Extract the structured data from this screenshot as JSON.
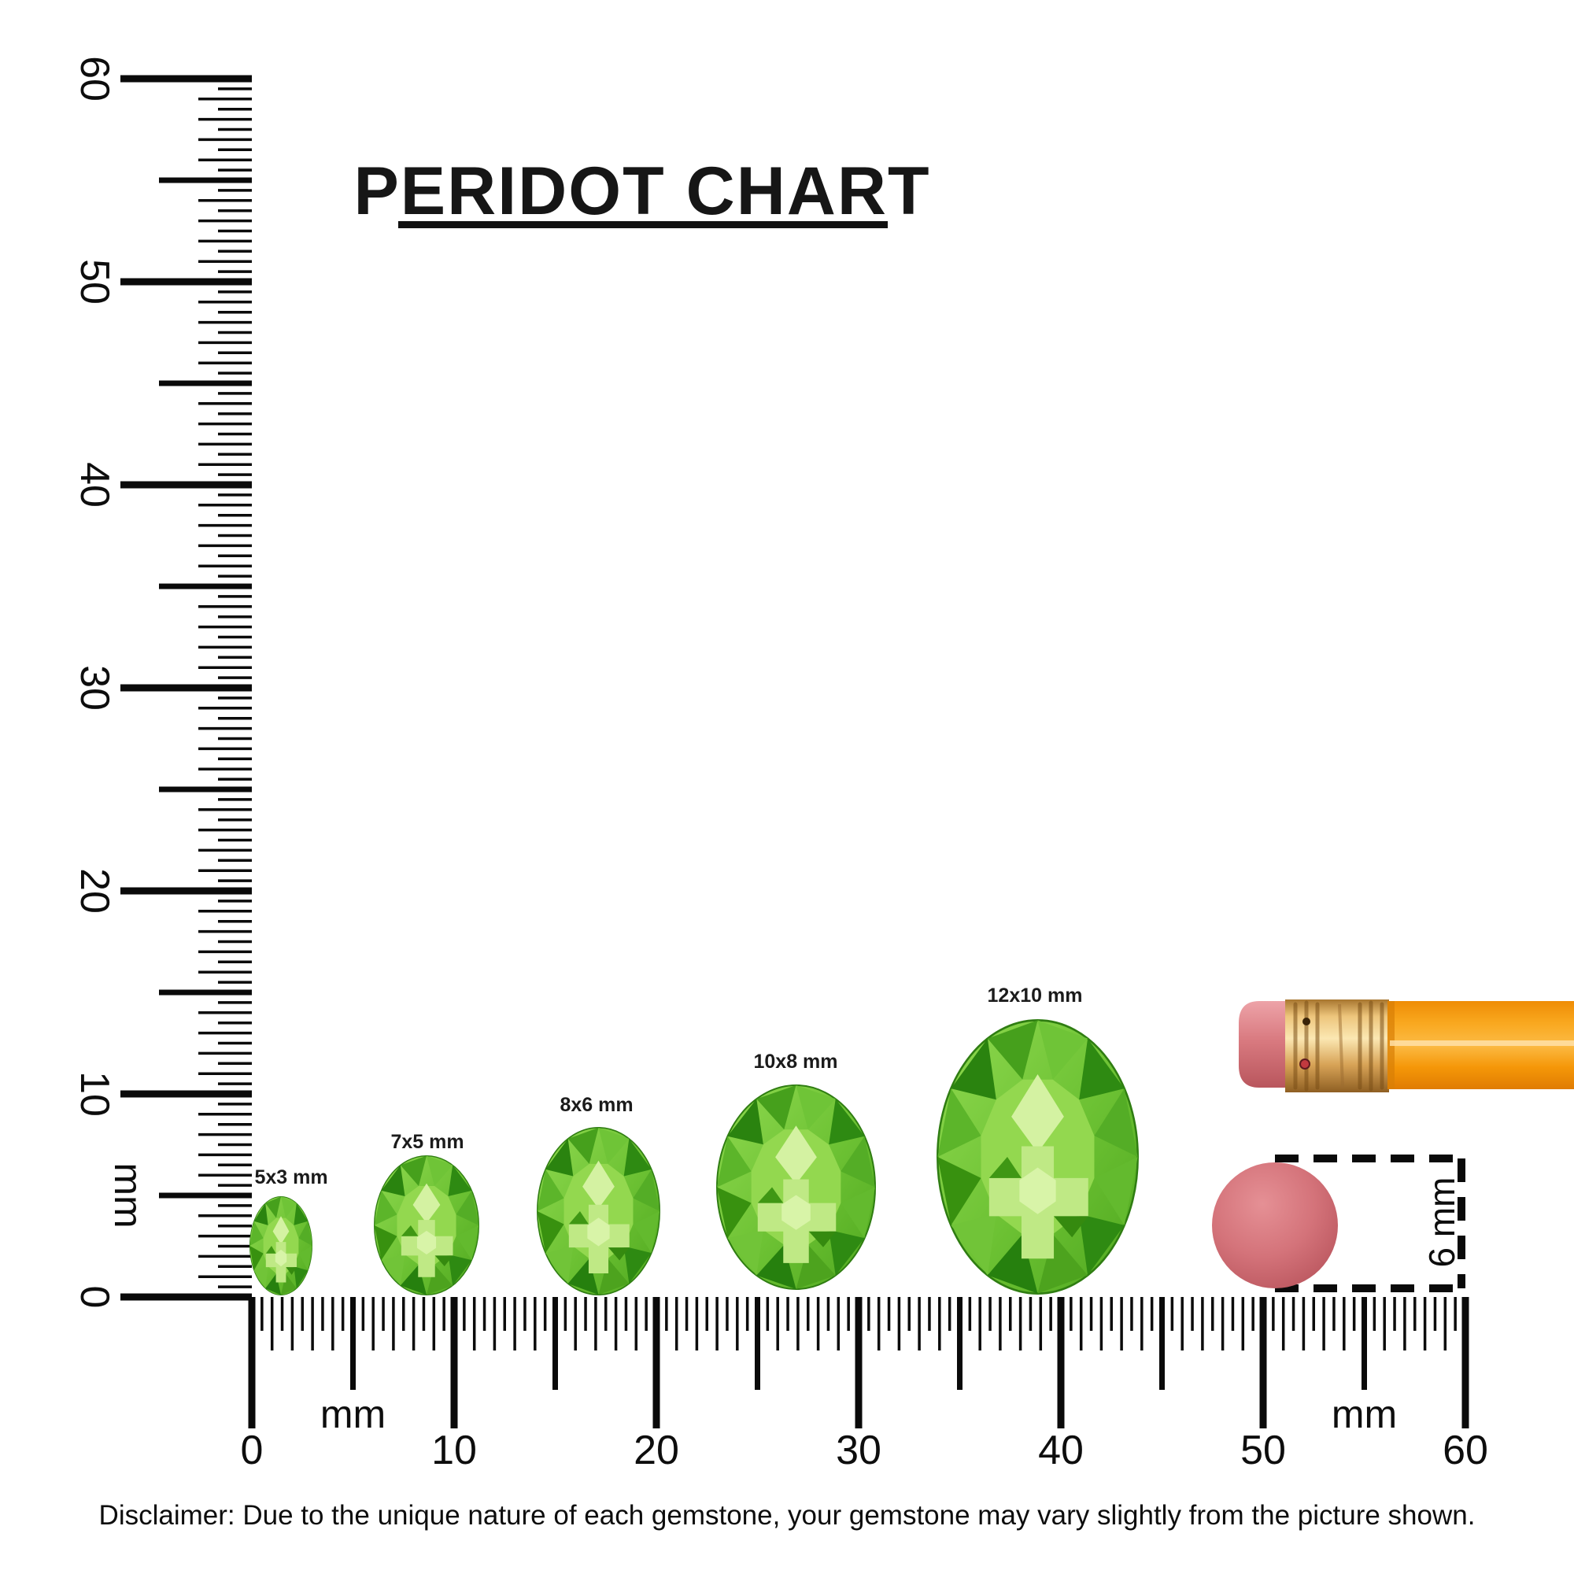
{
  "title": {
    "text": "PERIDOT CHART"
  },
  "vertical_ruler": {
    "unit_label": "mm",
    "min_mm": 0,
    "max_mm": 60,
    "labels": [
      "0",
      "10",
      "20",
      "30",
      "40",
      "50",
      "60"
    ]
  },
  "horizontal_ruler": {
    "unit_label_left": "mm",
    "unit_label_right": "mm",
    "min_mm": 0,
    "max_mm": 60,
    "labels": [
      "0",
      "10",
      "20",
      "30",
      "40",
      "50",
      "60"
    ]
  },
  "gems": [
    {
      "label": "5x3 mm"
    },
    {
      "label": "7x5 mm"
    },
    {
      "label": "8x6 mm"
    },
    {
      "label": "10x8 mm"
    },
    {
      "label": "12x10 mm"
    }
  ],
  "eraser_annotation": {
    "label": "6 mm"
  },
  "disclaimer": "Disclaimer: Due to the unique nature of each gemstone, your gemstone may vary slightly from the picture shown.",
  "colors": {
    "ink": "#0a0a0a",
    "gem_green": "#6abf33",
    "gem_light": "#c4ec8a",
    "gem_dark": "#2e8a12",
    "pencil_orange": "#f89c0e",
    "ferrule_gold": "#dcae63",
    "eraser_pink": "#d26d72"
  }
}
